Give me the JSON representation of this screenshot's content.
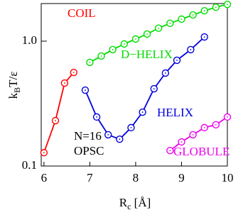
{
  "chart_data": {
    "type": "line",
    "xlabel": [
      "R",
      "c",
      " [Å]"
    ],
    "ylabel": [
      "k",
      "B",
      "T/ε"
    ],
    "xlim": [
      5.94,
      10
    ],
    "xticks": [
      6,
      7,
      8,
      9,
      10
    ],
    "ylim": [
      0.1,
      2.0
    ],
    "yticks": [
      {
        "value": 0.1,
        "label": "0.1"
      },
      {
        "value": 1,
        "label": "1.0"
      }
    ],
    "log_y": true,
    "series": [
      {
        "name": "COIL",
        "color": "#ff0000",
        "x": [
          6.0,
          6.25,
          6.45,
          6.65
        ],
        "values": [
          0.128,
          0.231,
          0.462,
          0.562
        ]
      },
      {
        "name": "D−HELIX",
        "color": "#00dd00",
        "x": [
          7.0,
          7.25,
          7.5,
          7.75,
          8.0,
          8.25,
          8.5,
          8.75,
          9.0,
          9.25,
          9.5,
          9.75,
          10.0
        ],
        "values": [
          0.676,
          0.76,
          0.855,
          0.949,
          1.04,
          1.14,
          1.27,
          1.39,
          1.5,
          1.62,
          1.75,
          1.87,
          1.97
        ]
      },
      {
        "name": "HELIX",
        "color": "#0000dd",
        "x": [
          6.9,
          7.15,
          7.4,
          7.65,
          7.9,
          8.15,
          8.4,
          8.65,
          8.9,
          9.2,
          9.5
        ],
        "values": [
          0.405,
          0.247,
          0.178,
          0.164,
          0.203,
          0.27,
          0.416,
          0.555,
          0.703,
          0.855,
          1.08
        ]
      },
      {
        "name": "GLOBULE",
        "color": "#ee00ee",
        "x": [
          8.75,
          9.0,
          9.25,
          9.5,
          9.75,
          10.0
        ],
        "values": [
          0.133,
          0.156,
          0.178,
          0.203,
          0.214,
          0.247
        ]
      }
    ],
    "annotations": [
      "N=16",
      "OPSC"
    ]
  }
}
